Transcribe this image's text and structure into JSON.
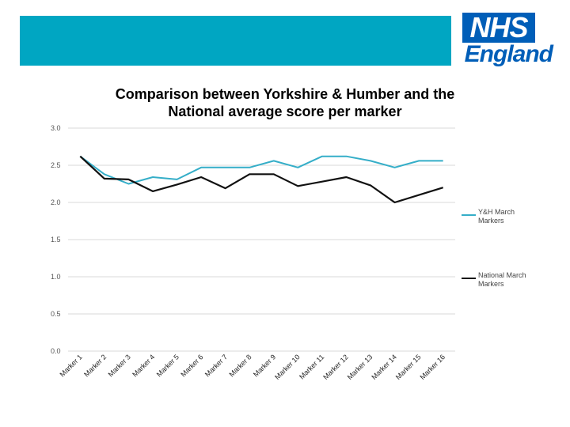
{
  "colors": {
    "banner": "#00A6C2",
    "nhs_blue": "#005EB8",
    "series_yh": "#35AEC8",
    "series_national": "#111111",
    "grid": "#D9D9D9"
  },
  "logo": {
    "top": "NHS",
    "bottom": "England"
  },
  "chart_data": {
    "type": "line",
    "title": "Comparison between Yorkshire & Humber and the National average score per marker",
    "title_lines": [
      "Comparison between Yorkshire & Humber and the",
      "National average score per marker"
    ],
    "xlabel": "",
    "ylabel": "",
    "ylim": [
      0,
      3
    ],
    "yticks": [
      "0.0",
      "0.5",
      "1.0",
      "1.5",
      "2.0",
      "2.5",
      "3.0"
    ],
    "grid": true,
    "legend_position": "right",
    "categories": [
      "Marker 1",
      "Marker 2",
      "Marker 3",
      "Marker 4",
      "Marker 5",
      "Marker 6",
      "Marker 7",
      "Marker 8",
      "Marker 9",
      "Marker 10",
      "Marker 11",
      "Marker 12",
      "Marker 13",
      "Marker 14",
      "Marker 15",
      "Marker 16"
    ],
    "series": [
      {
        "name": "Y&H March Markers",
        "legend_lines": [
          "Y&H March",
          "Markers"
        ],
        "values": [
          2.62,
          2.38,
          2.25,
          2.34,
          2.31,
          2.47,
          2.47,
          2.47,
          2.56,
          2.47,
          2.62,
          2.62,
          2.56,
          2.47,
          2.56,
          2.56
        ]
      },
      {
        "name": "National March Markers",
        "legend_lines": [
          "National March",
          "Markers"
        ],
        "values": [
          2.62,
          2.32,
          2.31,
          2.15,
          2.24,
          2.34,
          2.19,
          2.38,
          2.38,
          2.22,
          2.28,
          2.34,
          2.23,
          2.0,
          2.1,
          2.2
        ]
      }
    ]
  }
}
